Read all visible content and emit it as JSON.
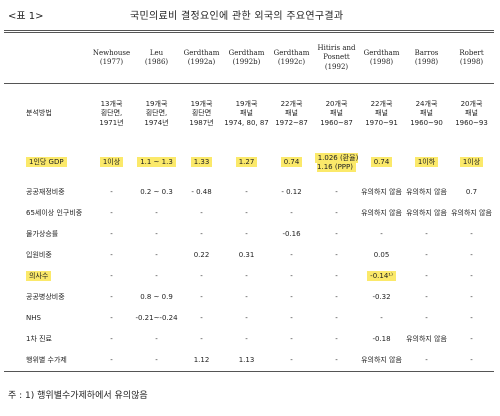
{
  "header": {
    "label": "<표 1>",
    "title": "국민의료비 결정요인에 관한 외국의 주요연구결과"
  },
  "table": {
    "columns": [
      "",
      "Newhouse\n(1977)",
      "Leu\n(1986)",
      "Gerdtham\n(1992a)",
      "Gerdtham\n(1992b)",
      "Gerdtham\n(1992c)",
      "Hitiris and\nPosnett\n(1992)",
      "Gerdtham\n(1998)",
      "Barros\n(1998)",
      "Robert\n(1998)"
    ],
    "rows": [
      [
        "분석방법",
        "13개국\n횡단면,\n1971년",
        "19개국\n횡단면,\n1974년",
        "19개국\n횡단면\n1987년",
        "19개국\n패널\n1974, 80, 87",
        "22개국\n패널\n1972~87",
        "20개국\n패널\n1960~87",
        "22개국\n패널\n1970~91",
        "24개국\n패널\n1960~90",
        "20개국\n패널\n1960~93"
      ],
      [
        "1인당 GDP",
        "1이상",
        "1.1 ~ 1.3",
        "1.33",
        "1.27",
        "0.74",
        "1.026 (환율)\n1.16 (PPP)",
        "0.74",
        "1이하",
        "1이상"
      ],
      [
        "공공재정비중",
        "-",
        "0.2 ~ 0.3",
        "- 0.48",
        "-",
        "- 0.12",
        "-",
        "유의하지 않음",
        "유의하지 않음",
        "0.7"
      ],
      [
        "65세이상 인구비중",
        "-",
        "-",
        "-",
        "-",
        "-",
        "-",
        "유의하지 않음",
        "유의하지 않음",
        "유의하지 않음"
      ],
      [
        "물가상승률",
        "-",
        "-",
        "-",
        "-",
        "-0.16",
        "-",
        "-",
        "-",
        "-"
      ],
      [
        "입원비중",
        "-",
        "-",
        "0.22",
        "0.31",
        "-",
        "-",
        "0.05",
        "-",
        "-"
      ],
      [
        "의사수",
        "-",
        "-",
        "-",
        "-",
        "-",
        "-",
        "-0.14¹⁾",
        "-",
        "-"
      ],
      [
        "공공병상비중",
        "-",
        "0.8 ~ 0.9",
        "-",
        "-",
        "-",
        "-",
        "-0.32",
        "-",
        "-"
      ],
      [
        "NHS",
        "-",
        "-0.21~-0.24",
        "-",
        "-",
        "-",
        "-",
        "-",
        "-",
        "-"
      ],
      [
        "1차 진료",
        "-",
        "-",
        "-",
        "-",
        "-",
        "-",
        "-0.18",
        "유의하지 않음",
        "-"
      ],
      [
        "행위별 수가제",
        "-",
        "-",
        "1.12",
        "1.13",
        "-",
        "-",
        "유의하지 않음",
        "-",
        "-"
      ]
    ]
  },
  "footnote": "주 : 1) 행위별수가제하에서 유의않음"
}
